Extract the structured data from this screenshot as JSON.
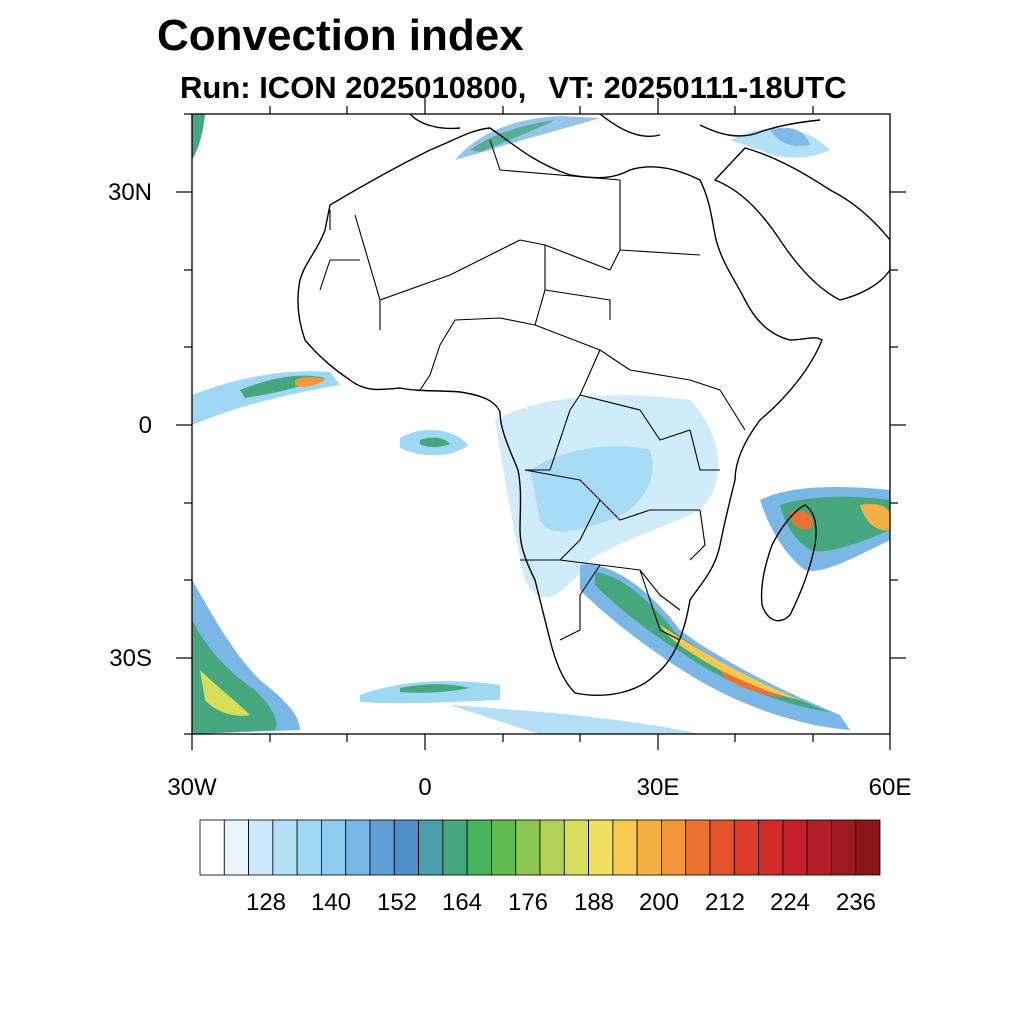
{
  "title": "Convection index",
  "subtitle": {
    "run": "Run: ICON 2025010800,",
    "vt": "VT: 20250111-18UTC"
  },
  "axes": {
    "lat_labels": [
      "30N",
      "0",
      "30S"
    ],
    "lon_labels": [
      "30W",
      "0",
      "30E",
      "60E"
    ]
  },
  "colorbar": {
    "labels": [
      "128",
      "140",
      "152",
      "164",
      "176",
      "188",
      "200",
      "212",
      "224",
      "236"
    ],
    "colors": [
      "#ffffff",
      "#e8f5fd",
      "#cbe9fa",
      "#b3e0f7",
      "#9ed8f5",
      "#8ecbf0",
      "#7ab6e6",
      "#5f9fd6",
      "#4d8fc6",
      "#4a9fa8",
      "#46a77e",
      "#45b45d",
      "#5fbd4f",
      "#8cc653",
      "#b2d158",
      "#d6de5b",
      "#f1e05c",
      "#f7c94f",
      "#f4b045",
      "#f3963a",
      "#ec7232",
      "#e5532c",
      "#de3b2a",
      "#d32a2a",
      "#c5202a",
      "#b31e28",
      "#9e1a22",
      "#8a1618"
    ]
  },
  "map": {
    "lon_range": [
      -30,
      60
    ],
    "lat_range": [
      -40,
      40
    ]
  }
}
